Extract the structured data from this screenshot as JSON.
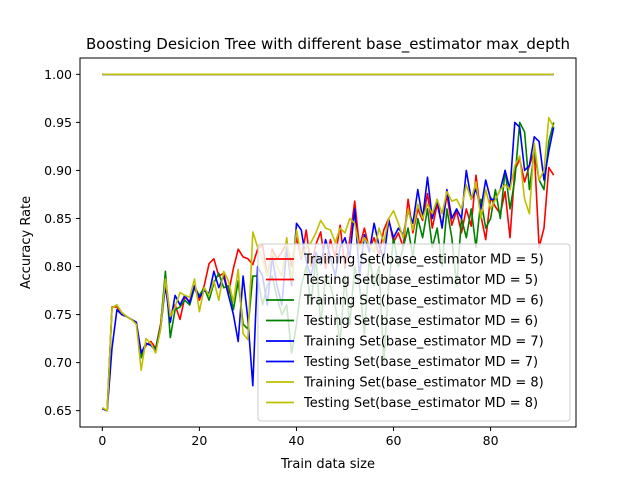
{
  "colors": {
    "red": "#ff0000",
    "green": "#008000",
    "blue": "#0000ff",
    "olive": "#bfbf00"
  },
  "chart_data": {
    "type": "line",
    "title": "Boosting Desicion Tree with different base_estimator max_depth",
    "xlabel": "Train data size",
    "ylabel": "Accuracy Rate",
    "xlim": [
      -4.6,
      97.6
    ],
    "ylim": [
      0.633,
      1.017
    ],
    "xticks": [
      0,
      20,
      40,
      60,
      80
    ],
    "yticks": [
      0.65,
      0.7,
      0.75,
      0.8,
      0.85,
      0.9,
      0.95,
      1.0
    ],
    "xtick_labels": [
      "0",
      "20",
      "40",
      "60",
      "80"
    ],
    "ytick_labels": [
      "0.65",
      "0.70",
      "0.75",
      "0.80",
      "0.85",
      "0.90",
      "0.95",
      "1.00"
    ],
    "grid": false,
    "legend_position": "lower right",
    "x_range": [
      0,
      93
    ],
    "series": [
      {
        "name": "Training Set(base_estimator MD = 5)",
        "color": "#ff0000",
        "values": [
          1.0,
          1.0
        ]
      },
      {
        "name": "Testing Set(base_estimator MD = 5)",
        "color": "#ff0000",
        "values": [
          0.653,
          0.65,
          0.758,
          0.758,
          0.75,
          0.748,
          0.745,
          0.742,
          0.708,
          0.718,
          0.722,
          0.715,
          0.74,
          0.788,
          0.748,
          0.76,
          0.745,
          0.768,
          0.764,
          0.778,
          0.765,
          0.78,
          0.803,
          0.808,
          0.79,
          0.793,
          0.772,
          0.798,
          0.818,
          0.81,
          0.808,
          0.802,
          0.818,
          0.823,
          0.79,
          0.818,
          0.808,
          0.815,
          0.825,
          0.8,
          0.83,
          0.808,
          0.838,
          0.8,
          0.823,
          0.836,
          0.798,
          0.828,
          0.81,
          0.843,
          0.798,
          0.828,
          0.868,
          0.82,
          0.84,
          0.818,
          0.83,
          0.812,
          0.838,
          0.85,
          0.825,
          0.835,
          0.82,
          0.87,
          0.835,
          0.86,
          0.848,
          0.876,
          0.84,
          0.865,
          0.842,
          0.875,
          0.843,
          0.858,
          0.835,
          0.86,
          0.842,
          0.895,
          0.853,
          0.828,
          0.872,
          0.862,
          0.855,
          0.878,
          0.83,
          0.9,
          0.912,
          0.888,
          0.905,
          0.92,
          0.82,
          0.84,
          0.903,
          0.895
        ]
      },
      {
        "name": "Training Set(base_estimator MD = 6)",
        "color": "#008000",
        "values": [
          1.0,
          1.0
        ]
      },
      {
        "name": "Testing Set(base_estimator MD = 6)",
        "color": "#008000",
        "values": [
          0.652,
          0.65,
          0.757,
          0.76,
          0.752,
          0.748,
          0.745,
          0.742,
          0.705,
          0.72,
          0.718,
          0.715,
          0.738,
          0.795,
          0.726,
          0.755,
          0.758,
          0.765,
          0.76,
          0.778,
          0.77,
          0.778,
          0.765,
          0.783,
          0.793,
          0.778,
          0.78,
          0.755,
          0.785,
          0.74,
          0.735,
          0.79,
          0.79,
          0.76,
          0.78,
          0.79,
          0.768,
          0.75,
          0.76,
          0.71,
          0.74,
          0.78,
          0.8,
          0.76,
          0.81,
          0.74,
          0.79,
          0.78,
          0.76,
          0.72,
          0.79,
          0.74,
          0.8,
          0.78,
          0.73,
          0.81,
          0.78,
          0.8,
          0.7,
          0.78,
          0.83,
          0.8,
          0.82,
          0.84,
          0.81,
          0.85,
          0.83,
          0.86,
          0.82,
          0.84,
          0.8,
          0.86,
          0.83,
          0.78,
          0.85,
          0.83,
          0.86,
          0.82,
          0.87,
          0.84,
          0.85,
          0.88,
          0.85,
          0.9,
          0.86,
          0.89,
          0.95,
          0.94,
          0.88,
          0.92,
          0.89,
          0.88,
          0.93,
          0.95
        ]
      },
      {
        "name": "Training Set(base_estimator MD = 7)",
        "color": "#0000ff",
        "values": [
          1.0,
          1.0
        ]
      },
      {
        "name": "Testing Set(base_estimator MD = 7)",
        "color": "#0000ff",
        "values": [
          0.652,
          0.65,
          0.715,
          0.755,
          0.75,
          0.748,
          0.745,
          0.742,
          0.71,
          0.72,
          0.718,
          0.712,
          0.735,
          0.78,
          0.742,
          0.77,
          0.76,
          0.77,
          0.762,
          0.78,
          0.768,
          0.775,
          0.772,
          0.795,
          0.778,
          0.79,
          0.77,
          0.75,
          0.722,
          0.79,
          0.745,
          0.676,
          0.8,
          0.79,
          0.76,
          0.81,
          0.78,
          0.76,
          0.82,
          0.78,
          0.845,
          0.838,
          0.805,
          0.79,
          0.815,
          0.802,
          0.828,
          0.81,
          0.79,
          0.82,
          0.83,
          0.81,
          0.86,
          0.79,
          0.833,
          0.815,
          0.845,
          0.822,
          0.808,
          0.848,
          0.83,
          0.84,
          0.833,
          0.858,
          0.845,
          0.88,
          0.85,
          0.893,
          0.85,
          0.87,
          0.84,
          0.88,
          0.85,
          0.86,
          0.85,
          0.9,
          0.87,
          0.88,
          0.86,
          0.89,
          0.87,
          0.87,
          0.88,
          0.9,
          0.88,
          0.95,
          0.945,
          0.9,
          0.905,
          0.935,
          0.93,
          0.89,
          0.92,
          0.945
        ]
      },
      {
        "name": "Training Set(base_estimator MD = 8)",
        "color": "#bfbf00",
        "values": [
          1.0,
          1.0
        ]
      },
      {
        "name": "Testing Set(base_estimator MD = 8)",
        "color": "#bfbf00",
        "values": [
          0.653,
          0.65,
          0.757,
          0.76,
          0.752,
          0.748,
          0.745,
          0.74,
          0.692,
          0.725,
          0.72,
          0.71,
          0.735,
          0.787,
          0.748,
          0.758,
          0.773,
          0.77,
          0.768,
          0.787,
          0.753,
          0.778,
          0.77,
          0.785,
          0.765,
          0.795,
          0.785,
          0.763,
          0.797,
          0.73,
          0.724,
          0.836,
          0.82,
          0.808,
          0.79,
          0.815,
          0.8,
          0.79,
          0.83,
          0.785,
          0.838,
          0.81,
          0.82,
          0.825,
          0.835,
          0.848,
          0.84,
          0.838,
          0.825,
          0.84,
          0.835,
          0.85,
          0.845,
          0.818,
          0.83,
          0.822,
          0.815,
          0.84,
          0.825,
          0.85,
          0.858,
          0.845,
          0.83,
          0.86,
          0.838,
          0.865,
          0.85,
          0.865,
          0.855,
          0.87,
          0.855,
          0.878,
          0.868,
          0.87,
          0.86,
          0.885,
          0.87,
          0.888,
          0.85,
          0.88,
          0.86,
          0.87,
          0.88,
          0.885,
          0.88,
          0.905,
          0.915,
          0.87,
          0.855,
          0.928,
          0.89,
          0.9,
          0.955,
          0.945
        ]
      }
    ]
  }
}
